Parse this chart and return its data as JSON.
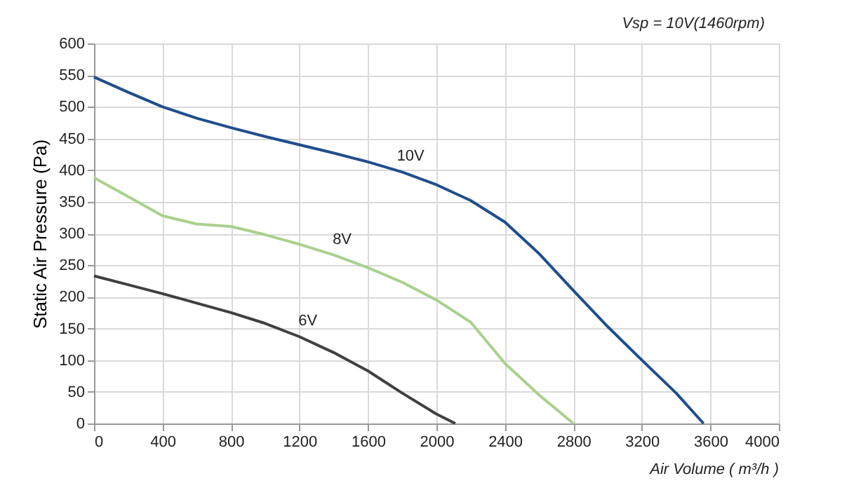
{
  "chart_data": {
    "type": "line",
    "xlabel": "Air Volume ( m³/h )",
    "ylabel": "Static Air Pressure  (Pa)",
    "annotations": [
      "Vsp = 10V(1460rpm)"
    ],
    "xlim": [
      0,
      4000
    ],
    "xticks": [
      0,
      400,
      800,
      1200,
      1600,
      2000,
      2400,
      2800,
      3200,
      3600,
      4000
    ],
    "ylim": [
      0,
      600
    ],
    "yticks": [
      0,
      50,
      100,
      150,
      200,
      250,
      300,
      350,
      400,
      450,
      500,
      550,
      600
    ],
    "grid": true,
    "marker": "none",
    "line_style": "solid",
    "series": [
      {
        "name": "10V",
        "color": "#1f4e8c",
        "x": [
          0,
          200,
          400,
          600,
          800,
          1000,
          1200,
          1400,
          1600,
          1800,
          2000,
          2200,
          2400,
          2600,
          2800,
          3000,
          3200,
          3400,
          3560
        ],
        "values": [
          547,
          523,
          500,
          482,
          467,
          453,
          440,
          427,
          413,
          397,
          377,
          352,
          318,
          268,
          210,
          153,
          100,
          48,
          0
        ]
      },
      {
        "name": "8V",
        "color": "#a9d18e",
        "x": [
          0,
          200,
          400,
          600,
          800,
          1000,
          1200,
          1400,
          1600,
          1800,
          2000,
          2200,
          2400,
          2600,
          2800
        ],
        "values": [
          388,
          358,
          328,
          315,
          311,
          298,
          283,
          266,
          246,
          223,
          195,
          160,
          95,
          45,
          0
        ]
      },
      {
        "name": "6V",
        "color": "#404040",
        "x": [
          0,
          200,
          400,
          600,
          800,
          1000,
          1200,
          1400,
          1600,
          1800,
          2000,
          2110
        ],
        "values": [
          233,
          219,
          205,
          190,
          175,
          158,
          137,
          112,
          83,
          48,
          15,
          0
        ]
      }
    ]
  }
}
